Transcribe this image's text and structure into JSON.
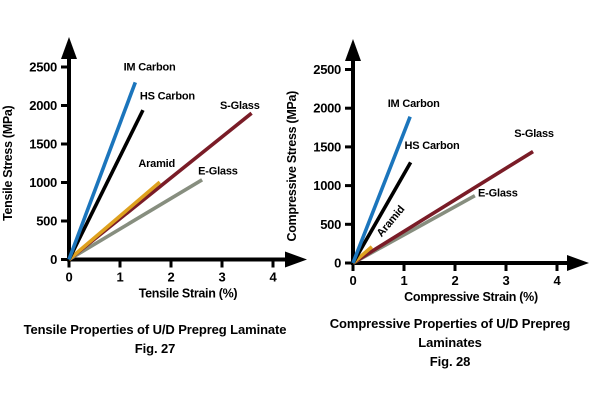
{
  "figure": {
    "background": "#ffffff",
    "text_color": "#000000"
  },
  "chart_data": [
    {
      "id": "tensile",
      "type": "line",
      "title": "Tensile Properties of U/D Prepreg Laminate",
      "title_lines": [
        "Tensile Properties of U/D Prepreg Laminate"
      ],
      "fig_label": "Fig. 27",
      "xlabel": "Tensile Strain (%)",
      "ylabel": "Tensile Stress (MPa)",
      "xlim": [
        0,
        4.65
      ],
      "ylim": [
        0,
        2900
      ],
      "xticks": [
        0,
        1,
        2,
        3,
        4
      ],
      "yticks": [
        0,
        500,
        1000,
        1500,
        2000,
        2500
      ],
      "grid": false,
      "legend": "inline-labels",
      "axis_color": "#000000",
      "series": [
        {
          "name": "IM Carbon",
          "color": "#1b75bc",
          "points": [
            [
              0,
              0
            ],
            [
              1.3,
              2300
            ]
          ],
          "label_at": [
            1.58,
            2505
          ],
          "label_rotation": 0
        },
        {
          "name": "HS Carbon",
          "color": "#000000",
          "points": [
            [
              0,
              0
            ],
            [
              1.45,
              1940
            ]
          ],
          "label_at": [
            1.93,
            2130
          ],
          "label_rotation": 0
        },
        {
          "name": "Aramid",
          "color": "#dea11e",
          "points": [
            [
              0,
              0
            ],
            [
              1.78,
              1005
            ]
          ],
          "label_at": [
            1.72,
            1255
          ],
          "label_rotation": 0
        },
        {
          "name": "S-Glass",
          "color": "#7a1c27",
          "points": [
            [
              0,
              0
            ],
            [
              3.58,
              1900
            ]
          ],
          "label_at": [
            3.35,
            2005
          ],
          "label_rotation": 0
        },
        {
          "name": "E-Glass",
          "color": "#878e7f",
          "points": [
            [
              0,
              0
            ],
            [
              2.61,
              1035
            ]
          ],
          "label_at": [
            2.92,
            1155
          ],
          "label_rotation": 0
        }
      ]
    },
    {
      "id": "compressive",
      "type": "line",
      "title": "Compressive Properties of U/D Prepreg Laminates",
      "title_lines": [
        "Compressive Properties of U/D Prepreg",
        "Laminates"
      ],
      "fig_label": "Fig. 28",
      "xlabel": "Compressive Strain (%)",
      "ylabel": "Compressive Stress (MPa)",
      "xlim": [
        0,
        4.65
      ],
      "ylim": [
        0,
        2900
      ],
      "xticks": [
        0,
        1,
        2,
        3,
        4
      ],
      "yticks": [
        0,
        500,
        1000,
        1500,
        2000,
        2500
      ],
      "grid": false,
      "legend": "inline-labels",
      "axis_color": "#000000",
      "series": [
        {
          "name": "IM Carbon",
          "color": "#1b75bc",
          "points": [
            [
              0,
              0
            ],
            [
              1.12,
              1890
            ]
          ],
          "label_at": [
            1.19,
            2065
          ],
          "label_rotation": 0
        },
        {
          "name": "HS Carbon",
          "color": "#000000",
          "points": [
            [
              0,
              0
            ],
            [
              1.13,
              1300
            ]
          ],
          "label_at": [
            1.55,
            1525
          ],
          "label_rotation": 0
        },
        {
          "name": "Aramid",
          "color": "#dea11e",
          "points": [
            [
              0,
              0
            ],
            [
              0.37,
              210
            ]
          ],
          "label_at": [
            0.73,
            545
          ],
          "label_rotation": -50
        },
        {
          "name": "S-Glass",
          "color": "#7a1c27",
          "points": [
            [
              0,
              0
            ],
            [
              3.53,
              1440
            ]
          ],
          "label_at": [
            3.55,
            1680
          ],
          "label_rotation": 0
        },
        {
          "name": "E-Glass",
          "color": "#878e7f",
          "points": [
            [
              0,
              0
            ],
            [
              2.39,
              870
            ]
          ],
          "label_at": [
            2.84,
            910
          ],
          "label_rotation": 0
        }
      ]
    }
  ]
}
